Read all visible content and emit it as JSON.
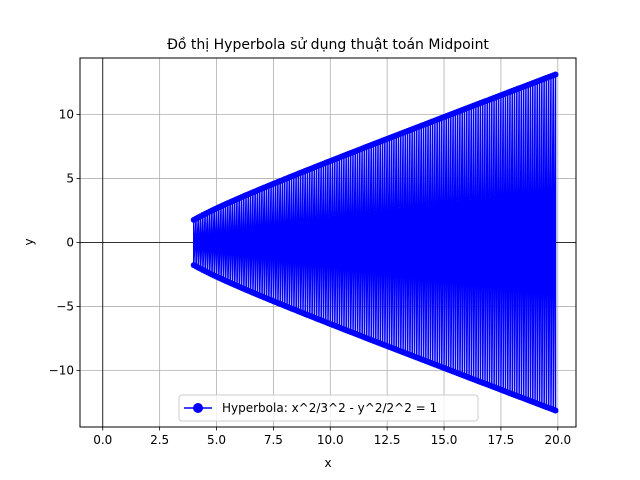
{
  "chart_data": {
    "type": "line",
    "title": "Đồ thị Hyperbola sử dụng thuật toán Midpoint",
    "xlabel": "x",
    "ylabel": "y",
    "xlim": [
      -1.0,
      20.8
    ],
    "ylim": [
      -14.4,
      14.4
    ],
    "xticks": [
      0.0,
      2.5,
      5.0,
      7.5,
      10.0,
      12.5,
      15.0,
      17.5,
      20.0
    ],
    "xtick_labels": [
      "0.0",
      "2.5",
      "5.0",
      "7.5",
      "10.0",
      "12.5",
      "15.0",
      "17.5",
      "20.0"
    ],
    "yticks": [
      -10,
      -5,
      0,
      5,
      10
    ],
    "ytick_labels": [
      "−10",
      "−5",
      "0",
      "5",
      "10"
    ],
    "grid": true,
    "reference_lines": {
      "x": 0,
      "y": 0
    },
    "legend_position": "lower center",
    "series": [
      {
        "name": "Hyperbola: x^2/3^2 - y^2/2^2 = 1",
        "color": "#0000ff",
        "marker": "circle",
        "a": 3,
        "b": 2,
        "x_start": 4.0,
        "x_end": 19.9,
        "x_step": 0.1,
        "note": "each x yields points (x, +y) and (x, -y) joined by a line, producing a filled-looking band"
      }
    ]
  }
}
